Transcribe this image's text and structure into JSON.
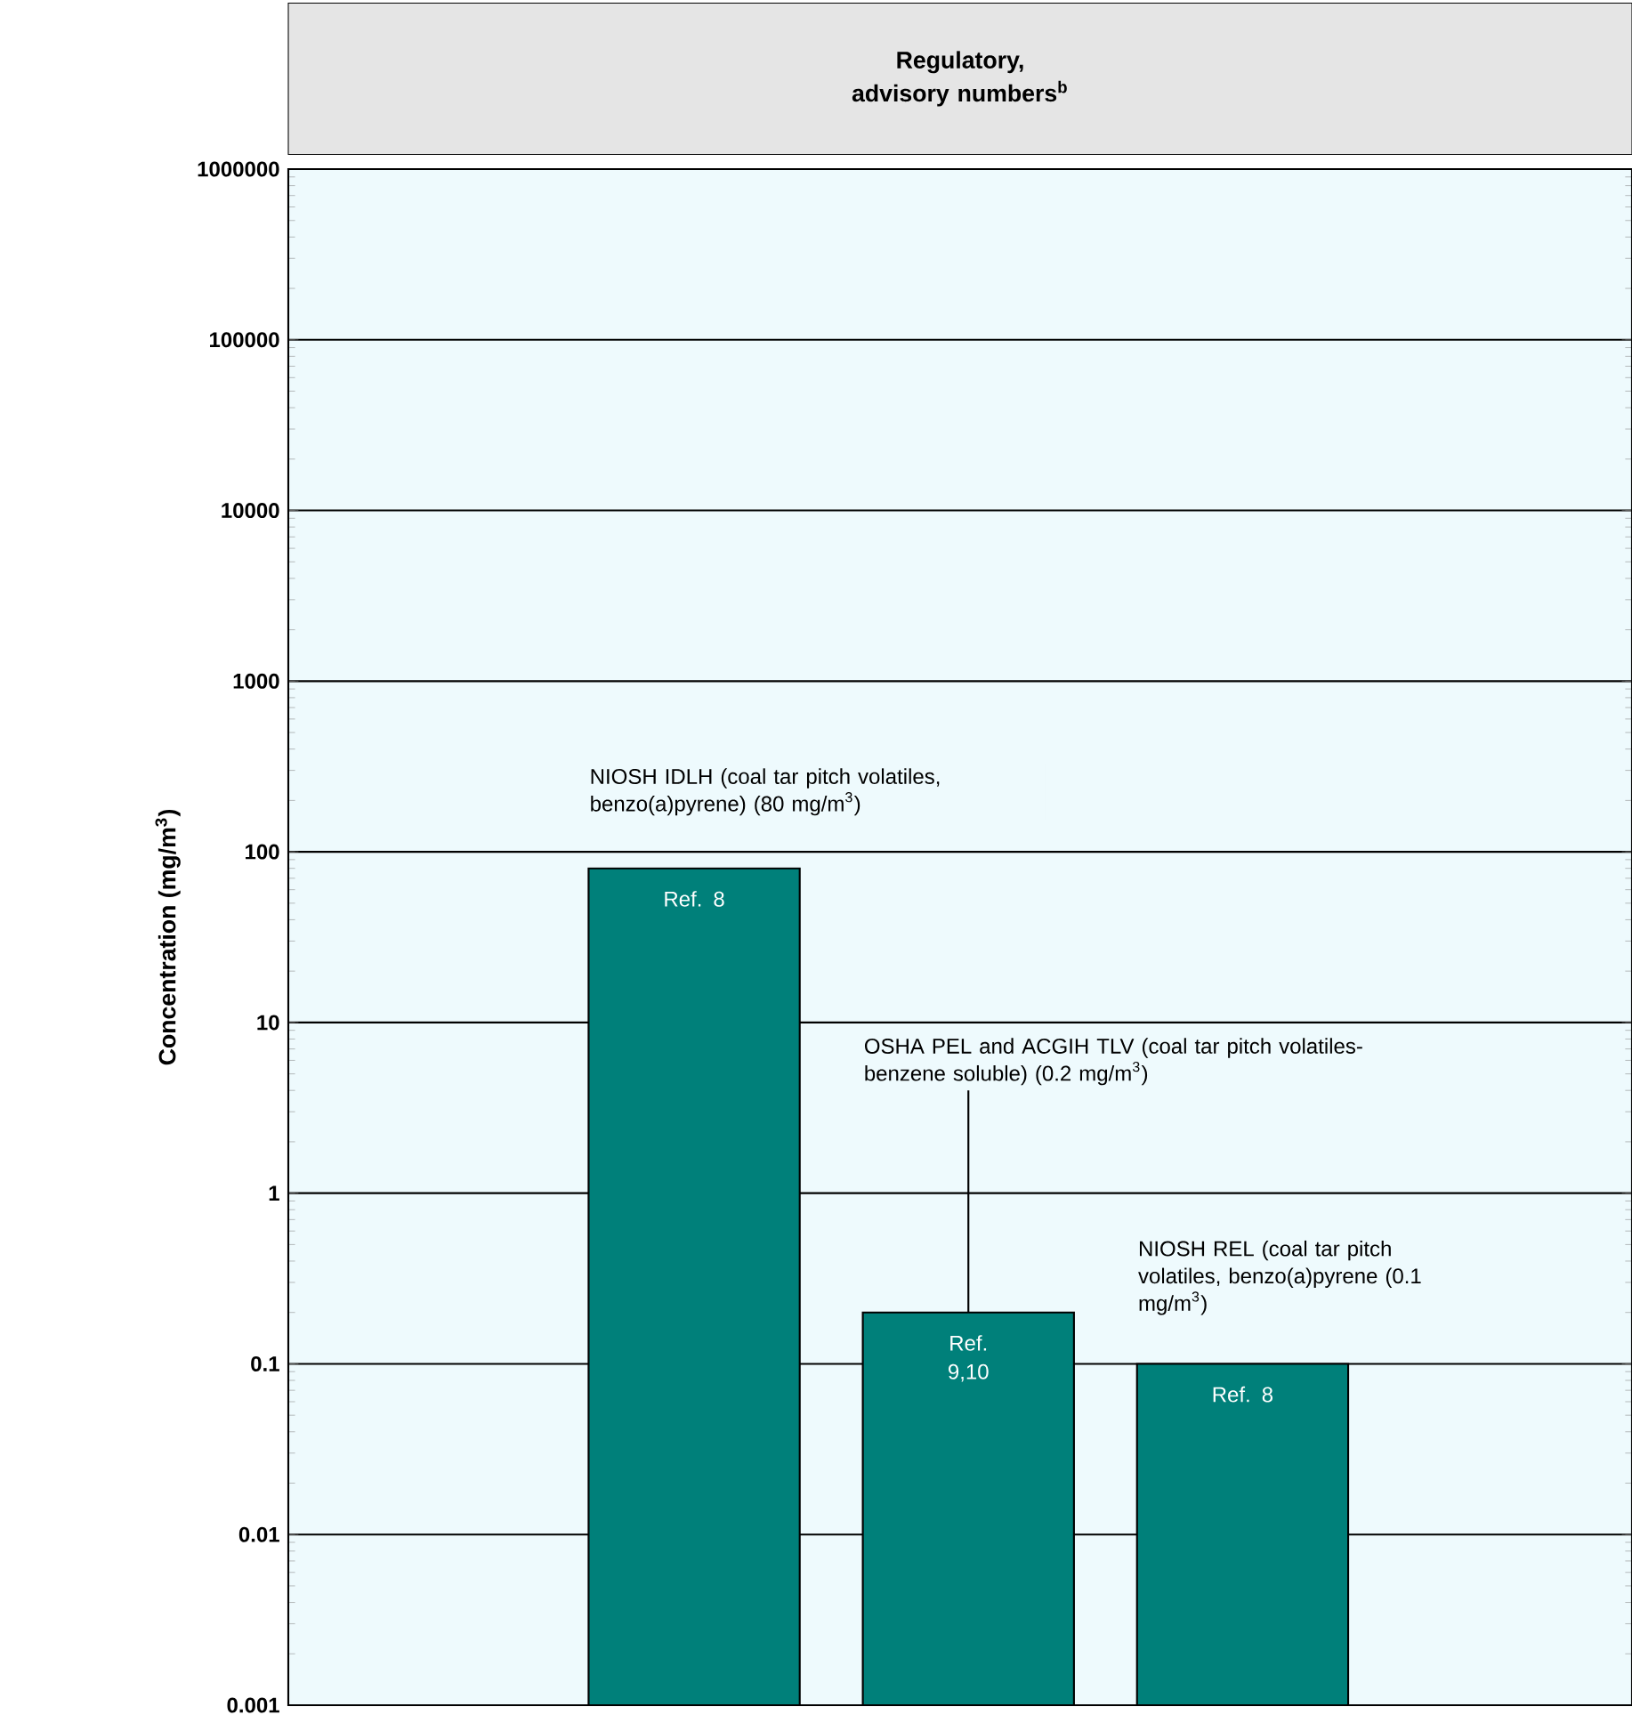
{
  "chart_data": {
    "type": "bar",
    "title": "Regulatory, advisory numbers$^{b}$",
    "ylabel": "Concentration (mg/m$^{3}$)",
    "categories": [
      "Ref. 8",
      "Ref. 9,10",
      "Ref. 8"
    ],
    "values": [
      80,
      0.2,
      0.1
    ],
    "color": "#00807a",
    "log": "y",
    "ylim": [
      0.001,
      1000000
    ],
    "yticks": [
      0.001,
      0.01,
      0.1,
      1,
      10,
      100,
      1000,
      10000,
      100000,
      1000000
    ],
    "grid": "y",
    "tick_labels": "y",
    "annotations": [
      "NIOSH IDLH (coal tar pitch volatiles, benzo(a)pyrene) (80 mg/m$^{3}$)",
      "OSHA PEL and ACGIH TLV (coal tar pitch volatiles-benzene soluble) (0.2 mg/m$^{3}$)",
      "NIOSH REL (coal tar pitch volatiles, benzo(a)pyrene (0.1 mg/m$^{3}$)"
    ]
  }
}
